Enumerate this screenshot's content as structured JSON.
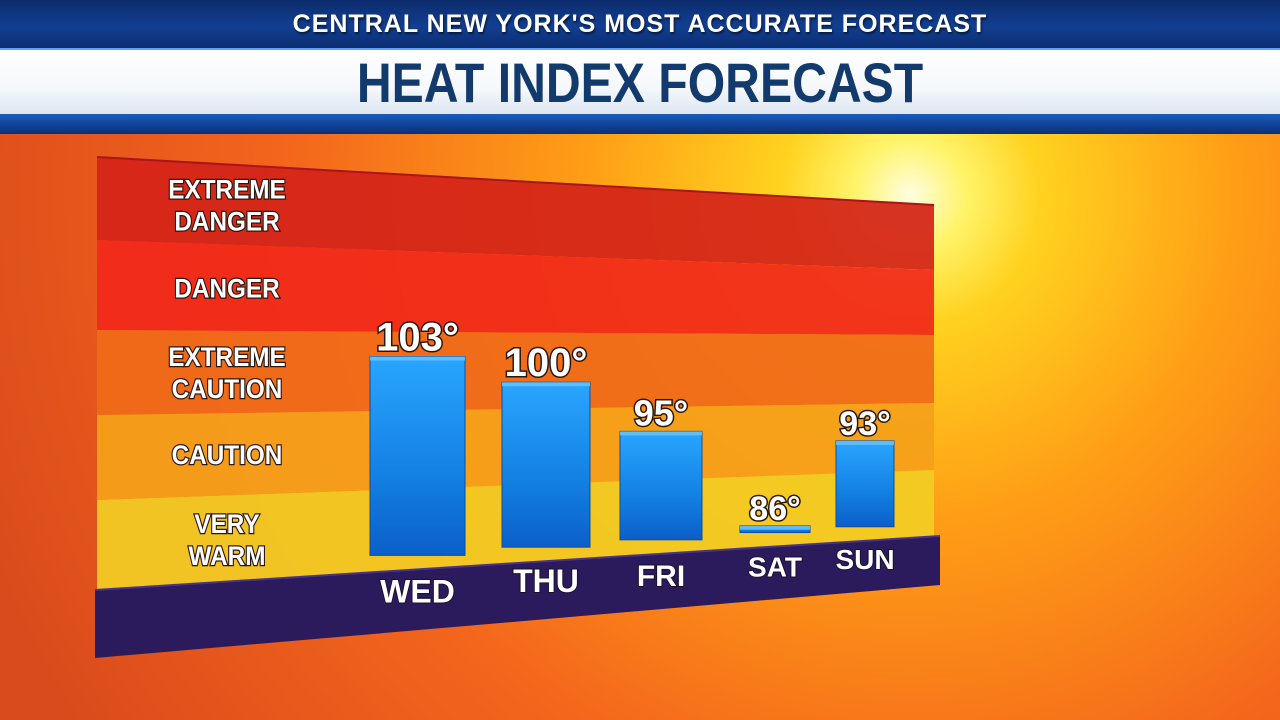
{
  "header": {
    "tagline": "CENTRAL NEW YORK'S MOST ACCURATE FORECAST",
    "title": "HEAT INDEX FORECAST"
  },
  "colors": {
    "header_blue": "#123f92",
    "title_text": "#123a6c",
    "bar_blue": "#1a86e6",
    "base_purple": "#2b1a5c"
  },
  "chart_data": {
    "type": "bar",
    "categories": [
      "WED",
      "THU",
      "FRI",
      "SAT",
      "SUN"
    ],
    "values": [
      103,
      100,
      95,
      86,
      93
    ],
    "value_labels": [
      "103°",
      "100°",
      "95°",
      "86°",
      "93°"
    ],
    "zones": [
      {
        "lines": [
          "EXTREME",
          "DANGER"
        ],
        "color": "#d42319"
      },
      {
        "lines": [
          "DANGER"
        ],
        "color": "#f1291a"
      },
      {
        "lines": [
          "EXTREME",
          "CAUTION"
        ],
        "color": "#f06a19"
      },
      {
        "lines": [
          "CAUTION"
        ],
        "color": "#f5a01a"
      },
      {
        "lines": [
          "VERY",
          "WARM"
        ],
        "color": "#f2cc24"
      }
    ],
    "legend": "none",
    "grid": false
  }
}
